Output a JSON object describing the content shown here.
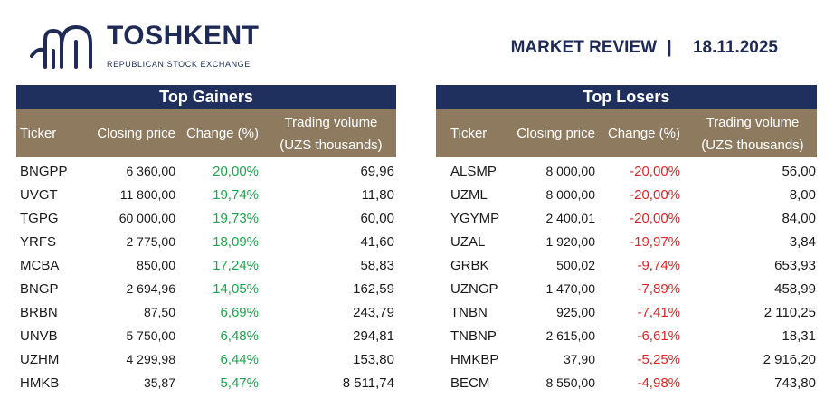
{
  "brand": {
    "name": "TOSHKENT",
    "subtitle": "REPUBLICAN STOCK EXCHANGE",
    "color": "#1f2a56"
  },
  "review": {
    "label": "MARKET REVIEW",
    "separator": "|",
    "date": "18.11.2025"
  },
  "colors": {
    "title_bar": "#1f2f5e",
    "header_bar": "#8e7b5f",
    "positive": "#19a84c",
    "negative": "#e32222"
  },
  "gainers": {
    "title": "Top Gainers",
    "headers": {
      "ticker": "Ticker",
      "close": "Closing price",
      "change": "Change (%)",
      "volume_line1": "Trading volume",
      "volume_line2": "(UZS thousands)"
    },
    "rows": [
      {
        "ticker": "BNGPP",
        "close": "6 360,00",
        "change": "20,00%",
        "volume": "69,96"
      },
      {
        "ticker": "UVGT",
        "close": "11 800,00",
        "change": "19,74%",
        "volume": "11,80"
      },
      {
        "ticker": "TGPG",
        "close": "60 000,00",
        "change": "19,73%",
        "volume": "60,00"
      },
      {
        "ticker": "YRFS",
        "close": "2 775,00",
        "change": "18,09%",
        "volume": "41,60"
      },
      {
        "ticker": "MCBA",
        "close": "850,00",
        "change": "17,24%",
        "volume": "58,83"
      },
      {
        "ticker": "BNGP",
        "close": "2 694,96",
        "change": "14,05%",
        "volume": "162,59"
      },
      {
        "ticker": "BRBN",
        "close": "87,50",
        "change": "6,69%",
        "volume": "243,79"
      },
      {
        "ticker": "UNVB",
        "close": "5 750,00",
        "change": "6,48%",
        "volume": "294,81"
      },
      {
        "ticker": "UZHM",
        "close": "4 299,98",
        "change": "6,44%",
        "volume": "153,80"
      },
      {
        "ticker": "HMKB",
        "close": "35,87",
        "change": "5,47%",
        "volume": "8 511,74"
      }
    ]
  },
  "losers": {
    "title": "Top Losers",
    "headers": {
      "ticker": "Ticker",
      "close": "Closing price",
      "change": "Change (%)",
      "volume_line1": "Trading volume",
      "volume_line2": "(UZS thousands)"
    },
    "rows": [
      {
        "ticker": "ALSMP",
        "close": "8 000,00",
        "change": "-20,00%",
        "volume": "56,00"
      },
      {
        "ticker": "UZML",
        "close": "8 000,00",
        "change": "-20,00%",
        "volume": "8,00"
      },
      {
        "ticker": "YGYMP",
        "close": "2 400,01",
        "change": "-20,00%",
        "volume": "84,00"
      },
      {
        "ticker": "UZAL",
        "close": "1 920,00",
        "change": "-19,97%",
        "volume": "3,84"
      },
      {
        "ticker": "GRBK",
        "close": "500,02",
        "change": "-9,74%",
        "volume": "653,93"
      },
      {
        "ticker": "UZNGP",
        "close": "1 470,00",
        "change": "-7,89%",
        "volume": "458,99"
      },
      {
        "ticker": "TNBN",
        "close": "925,00",
        "change": "-7,41%",
        "volume": "2 110,25"
      },
      {
        "ticker": "TNBNP",
        "close": "2 615,00",
        "change": "-6,61%",
        "volume": "18,31"
      },
      {
        "ticker": "HMKBP",
        "close": "37,90",
        "change": "-5,25%",
        "volume": "2 916,20"
      },
      {
        "ticker": "BECM",
        "close": "8 550,00",
        "change": "-4,98%",
        "volume": "743,80"
      }
    ]
  }
}
